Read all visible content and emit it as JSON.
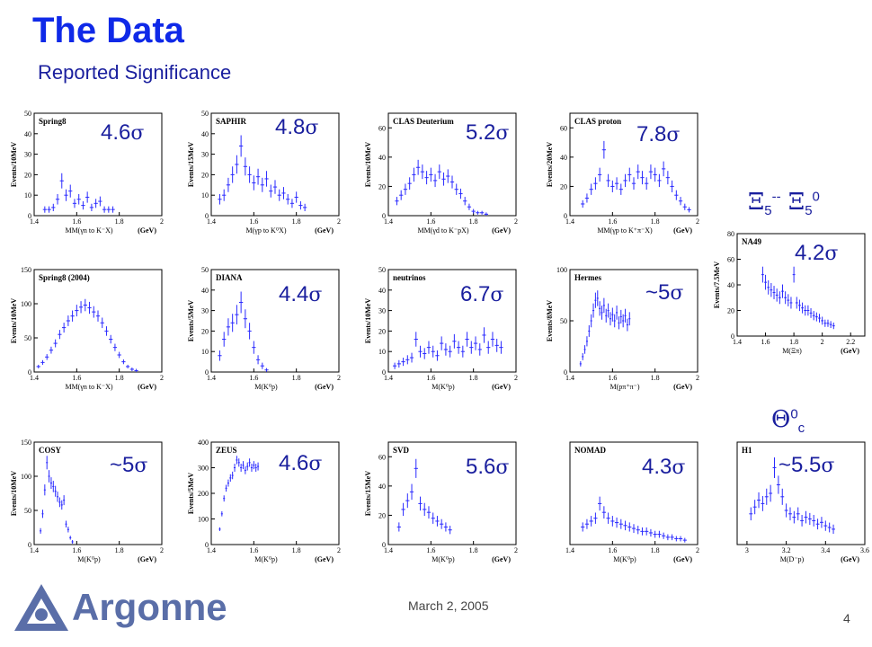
{
  "slide": {
    "title": "The Data",
    "subtitle": "Reported Significance",
    "date": "March 2, 2005",
    "page_number": "4",
    "logo_text": "Argonne",
    "xi_label": {
      "sym": "Ξ",
      "sub1": "5",
      "sup1": "--",
      "sub2": "5",
      "sup2": "0"
    },
    "theta_label": {
      "sym": "Θ",
      "sup": "0",
      "sub": "c"
    },
    "sigma_symbol": "σ",
    "colors": {
      "title": "#0f29e8",
      "text": "#1a1f9e",
      "data": "#2b2bff",
      "logo": "#5a6ea8"
    }
  },
  "chart_data": [
    {
      "type": "scatter",
      "panel": "Spring8",
      "name": "Spring8",
      "significance": "4.6",
      "sig_prefix": "",
      "ylabel": "Events/10MeV",
      "xlabel": "MM(γn to K⁻X)",
      "xunit": "(GeV)",
      "xlim": [
        1.4,
        2.0
      ],
      "ylim": [
        0,
        50
      ],
      "xticks": [
        "1.4",
        "1.6",
        "1.8",
        "2"
      ],
      "yticks": [
        "0",
        "10",
        "20",
        "30",
        "40",
        "50"
      ],
      "x": [
        1.45,
        1.47,
        1.49,
        1.51,
        1.53,
        1.55,
        1.57,
        1.59,
        1.61,
        1.63,
        1.65,
        1.67,
        1.69,
        1.71,
        1.73,
        1.75,
        1.77
      ],
      "y": [
        3,
        3,
        4,
        8,
        17,
        10,
        12,
        6,
        8,
        5,
        9,
        4,
        6,
        7,
        3,
        3,
        3
      ]
    },
    {
      "type": "scatter",
      "panel": "SAPHIR",
      "name": "SAPHIR",
      "significance": "4.8",
      "sig_prefix": "",
      "ylabel": "Events/15MeV",
      "xlabel": "M(γp to K⁰X)",
      "xunit": "(GeV)",
      "xlim": [
        1.4,
        2.0
      ],
      "ylim": [
        0,
        50
      ],
      "xticks": [
        "1.4",
        "1.6",
        "1.8",
        "2"
      ],
      "yticks": [
        "0",
        "10",
        "20",
        "30",
        "40",
        "50"
      ],
      "x": [
        1.44,
        1.46,
        1.48,
        1.5,
        1.52,
        1.54,
        1.56,
        1.58,
        1.6,
        1.62,
        1.64,
        1.66,
        1.68,
        1.7,
        1.72,
        1.74,
        1.76,
        1.78,
        1.8,
        1.82,
        1.84
      ],
      "y": [
        8,
        10,
        15,
        20,
        25,
        34,
        24,
        20,
        16,
        19,
        15,
        18,
        12,
        14,
        10,
        11,
        8,
        6,
        9,
        5,
        4
      ]
    },
    {
      "type": "scatter",
      "panel": "CLAS Deuterium",
      "name": "CLAS Deuterium",
      "significance": "5.2",
      "sig_prefix": "",
      "ylabel": "Events/10MeV",
      "xlabel": "MM(γd to K⁻pX)",
      "xunit": "(GeV)",
      "xlim": [
        1.4,
        2.0
      ],
      "ylim": [
        0,
        70
      ],
      "xticks": [
        "1.4",
        "1.6",
        "1.8",
        "2"
      ],
      "yticks": [
        "0",
        "20",
        "40",
        "60"
      ],
      "x": [
        1.44,
        1.46,
        1.48,
        1.5,
        1.52,
        1.54,
        1.56,
        1.58,
        1.6,
        1.62,
        1.64,
        1.66,
        1.68,
        1.7,
        1.72,
        1.74,
        1.76,
        1.78,
        1.8,
        1.82,
        1.84,
        1.86
      ],
      "y": [
        10,
        14,
        18,
        22,
        28,
        33,
        30,
        26,
        28,
        24,
        30,
        25,
        27,
        23,
        18,
        15,
        10,
        6,
        3,
        2,
        2,
        1
      ]
    },
    {
      "type": "scatter",
      "panel": "CLAS proton",
      "name": "CLAS proton",
      "significance": "7.8",
      "sig_prefix": "",
      "ylabel": "Events/20MeV",
      "xlabel": "MM(γp to K⁺π⁻X)",
      "xunit": "(GeV)",
      "xlim": [
        1.4,
        2.0
      ],
      "ylim": [
        0,
        70
      ],
      "xticks": [
        "1.4",
        "1.6",
        "1.8",
        "2"
      ],
      "yticks": [
        "0",
        "20",
        "40",
        "60"
      ],
      "x": [
        1.46,
        1.48,
        1.5,
        1.52,
        1.54,
        1.56,
        1.58,
        1.6,
        1.62,
        1.64,
        1.66,
        1.68,
        1.7,
        1.72,
        1.74,
        1.76,
        1.78,
        1.8,
        1.82,
        1.84,
        1.86,
        1.88,
        1.9,
        1.92,
        1.94,
        1.96
      ],
      "y": [
        8,
        12,
        18,
        22,
        28,
        45,
        24,
        20,
        22,
        18,
        24,
        28,
        22,
        30,
        26,
        22,
        30,
        28,
        24,
        32,
        26,
        20,
        14,
        10,
        6,
        4
      ]
    },
    {
      "type": "scatter",
      "panel": "Spring8 (2004)",
      "name": "Spring8 (2004)",
      "significance": "",
      "sig_prefix": "",
      "ylabel": "Events/10MeV",
      "xlabel": "MM(γn to K⁻X)",
      "xunit": "(GeV)",
      "xlim": [
        1.4,
        2.0
      ],
      "ylim": [
        0,
        150
      ],
      "xticks": [
        "1.4",
        "1.6",
        "1.8",
        "2"
      ],
      "yticks": [
        "0",
        "50",
        "100",
        "150"
      ],
      "x": [
        1.42,
        1.44,
        1.46,
        1.48,
        1.5,
        1.52,
        1.54,
        1.56,
        1.58,
        1.6,
        1.62,
        1.64,
        1.66,
        1.68,
        1.7,
        1.72,
        1.74,
        1.76,
        1.78,
        1.8,
        1.82,
        1.84,
        1.86,
        1.88
      ],
      "y": [
        8,
        14,
        22,
        32,
        42,
        55,
        65,
        75,
        82,
        90,
        95,
        98,
        94,
        88,
        82,
        72,
        60,
        48,
        36,
        25,
        15,
        8,
        4,
        2
      ]
    },
    {
      "type": "scatter",
      "panel": "DIANA",
      "name": "DIANA",
      "significance": "4.4",
      "sig_prefix": "",
      "ylabel": "Events/5MeV",
      "xlabel": "M(K⁰p)",
      "xunit": "(GeV)",
      "xlim": [
        1.4,
        2.0
      ],
      "ylim": [
        0,
        50
      ],
      "xticks": [
        "1.4",
        "1.6",
        "1.8",
        "2"
      ],
      "yticks": [
        "0",
        "10",
        "20",
        "30",
        "40",
        "50"
      ],
      "x": [
        1.44,
        1.46,
        1.48,
        1.5,
        1.52,
        1.54,
        1.56,
        1.58,
        1.6,
        1.62,
        1.64,
        1.66
      ],
      "y": [
        8,
        16,
        22,
        24,
        28,
        34,
        26,
        20,
        12,
        6,
        3,
        1
      ]
    },
    {
      "type": "scatter",
      "panel": "neutrinos",
      "name": "neutrinos",
      "significance": "6.7",
      "sig_prefix": "",
      "ylabel": "Events/10MeV",
      "xlabel": "M(K⁰p)",
      "xunit": "(GeV)",
      "xlim": [
        1.4,
        2.0
      ],
      "ylim": [
        0,
        50
      ],
      "xticks": [
        "1.4",
        "1.6",
        "1.8",
        "2"
      ],
      "yticks": [
        "0",
        "10",
        "20",
        "30",
        "40",
        "50"
      ],
      "x": [
        1.43,
        1.45,
        1.47,
        1.49,
        1.51,
        1.53,
        1.55,
        1.57,
        1.59,
        1.61,
        1.63,
        1.65,
        1.67,
        1.69,
        1.71,
        1.73,
        1.75,
        1.77,
        1.79,
        1.81,
        1.83,
        1.85,
        1.87,
        1.89,
        1.91,
        1.93
      ],
      "y": [
        3,
        4,
        5,
        6,
        7,
        16,
        10,
        9,
        12,
        10,
        8,
        14,
        11,
        10,
        15,
        12,
        10,
        16,
        12,
        14,
        11,
        18,
        12,
        16,
        13,
        12
      ]
    },
    {
      "type": "scatter",
      "panel": "Hermes",
      "name": "Hermes",
      "significance": "5",
      "sig_prefix": "~",
      "ylabel": "Events/8MeV",
      "xlabel": "M(pπ⁺π⁻)",
      "xunit": "(GeV)",
      "xlim": [
        1.4,
        2.0
      ],
      "ylim": [
        0,
        100
      ],
      "xticks": [
        "1.4",
        "1.6",
        "1.8",
        "2"
      ],
      "yticks": [
        "0",
        "50",
        "100"
      ],
      "x": [
        1.45,
        1.46,
        1.47,
        1.48,
        1.49,
        1.5,
        1.51,
        1.52,
        1.53,
        1.54,
        1.55,
        1.56,
        1.57,
        1.58,
        1.59,
        1.6,
        1.61,
        1.62,
        1.63,
        1.64,
        1.65,
        1.66,
        1.67,
        1.68
      ],
      "y": [
        8,
        15,
        22,
        30,
        40,
        50,
        60,
        70,
        72,
        62,
        58,
        65,
        55,
        60,
        52,
        56,
        50,
        58,
        48,
        54,
        50,
        55,
        46,
        52
      ]
    },
    {
      "type": "scatter",
      "panel": "NA49",
      "name": "NA49",
      "significance": "4.2",
      "sig_prefix": "",
      "ylabel": "Events/7.5MeV",
      "xlabel": "M(Ξπ)",
      "xunit": "(GeV)",
      "xlim": [
        1.4,
        2.3
      ],
      "ylim": [
        0,
        80
      ],
      "xticks": [
        "1.4",
        "1.6",
        "1.8",
        "2",
        "2.2"
      ],
      "yticks": [
        "0",
        "20",
        "40",
        "60",
        "80"
      ],
      "x": [
        1.58,
        1.6,
        1.62,
        1.64,
        1.66,
        1.68,
        1.7,
        1.72,
        1.74,
        1.76,
        1.78,
        1.8,
        1.82,
        1.84,
        1.86,
        1.88,
        1.9,
        1.92,
        1.94,
        1.96,
        1.98,
        2.0,
        2.02,
        2.04,
        2.06,
        2.08
      ],
      "y": [
        48,
        42,
        38,
        36,
        34,
        32,
        30,
        35,
        30,
        28,
        26,
        48,
        26,
        24,
        22,
        20,
        20,
        18,
        16,
        15,
        14,
        12,
        10,
        10,
        9,
        8
      ]
    },
    {
      "type": "scatter",
      "panel": "COSY",
      "name": "COSY",
      "significance": "5",
      "sig_prefix": "~",
      "ylabel": "Events/10MeV",
      "xlabel": "M(K⁰p)",
      "xunit": "(GeV)",
      "xlim": [
        1.4,
        2.0
      ],
      "ylim": [
        0,
        150
      ],
      "xticks": [
        "1.4",
        "1.6",
        "1.8",
        "2"
      ],
      "yticks": [
        "0",
        "50",
        "100",
        "150"
      ],
      "x": [
        1.43,
        1.44,
        1.45,
        1.46,
        1.47,
        1.48,
        1.49,
        1.5,
        1.51,
        1.52,
        1.53,
        1.54,
        1.55,
        1.56,
        1.57,
        1.58
      ],
      "y": [
        20,
        45,
        80,
        120,
        100,
        90,
        85,
        78,
        70,
        62,
        58,
        65,
        30,
        22,
        10,
        4
      ]
    },
    {
      "type": "scatter",
      "panel": "ZEUS",
      "name": "ZEUS",
      "significance": "4.6",
      "sig_prefix": "",
      "ylabel": "Events/5MeV",
      "xlabel": "M(K⁰p)",
      "xunit": "(GeV)",
      "xlim": [
        1.4,
        2.0
      ],
      "ylim": [
        0,
        400
      ],
      "xticks": [
        "1.4",
        "1.6",
        "1.8",
        "2"
      ],
      "yticks": [
        "0",
        "100",
        "200",
        "300",
        "400"
      ],
      "x": [
        1.44,
        1.45,
        1.46,
        1.47,
        1.48,
        1.49,
        1.5,
        1.51,
        1.52,
        1.53,
        1.54,
        1.55,
        1.56,
        1.57,
        1.58,
        1.59,
        1.6,
        1.61,
        1.62
      ],
      "y": [
        60,
        120,
        180,
        220,
        240,
        260,
        270,
        300,
        330,
        320,
        300,
        310,
        290,
        305,
        320,
        300,
        310,
        300,
        305
      ]
    },
    {
      "type": "scatter",
      "panel": "SVD",
      "name": "SVD",
      "significance": "5.6",
      "sig_prefix": "",
      "ylabel": "Events/15MeV",
      "xlabel": "M(K⁰p)",
      "xunit": "(GeV)",
      "xlim": [
        1.4,
        2.0
      ],
      "ylim": [
        0,
        70
      ],
      "xticks": [
        "1.4",
        "1.6",
        "1.8",
        "2"
      ],
      "yticks": [
        "0",
        "20",
        "40",
        "60"
      ],
      "x": [
        1.45,
        1.47,
        1.49,
        1.51,
        1.53,
        1.55,
        1.57,
        1.59,
        1.61,
        1.63,
        1.65,
        1.67,
        1.69
      ],
      "y": [
        12,
        24,
        30,
        36,
        52,
        28,
        24,
        22,
        18,
        16,
        14,
        12,
        10
      ]
    },
    {
      "type": "scatter",
      "panel": "NOMAD",
      "name": "NOMAD",
      "significance": "4.3",
      "sig_prefix": "",
      "ylabel": "",
      "xlabel": "M(K⁰p)",
      "xunit": "(GeV)",
      "xlim": [
        1.4,
        2.0
      ],
      "ylim": [
        0,
        70
      ],
      "xticks": [
        "1.4",
        "1.6",
        "1.8",
        "2"
      ],
      "yticks": [],
      "x": [
        1.46,
        1.48,
        1.5,
        1.52,
        1.54,
        1.56,
        1.58,
        1.6,
        1.62,
        1.64,
        1.66,
        1.68,
        1.7,
        1.72,
        1.74,
        1.76,
        1.78,
        1.8,
        1.82,
        1.84,
        1.86,
        1.88,
        1.9,
        1.92,
        1.94
      ],
      "y": [
        12,
        14,
        16,
        18,
        28,
        22,
        18,
        16,
        15,
        14,
        13,
        12,
        11,
        10,
        9,
        9,
        8,
        7,
        7,
        6,
        5,
        5,
        4,
        4,
        3
      ]
    },
    {
      "type": "scatter",
      "panel": "H1",
      "name": "H1",
      "significance": "5.5",
      "sig_prefix": "~",
      "ylabel": "",
      "xlabel": "M(D⁻p)",
      "xunit": "(GeV)",
      "xlim": [
        2.95,
        3.6
      ],
      "ylim": [
        0,
        60
      ],
      "xticks": [
        "3",
        "3.2",
        "3.4",
        "3.6"
      ],
      "yticks": [],
      "x": [
        3.02,
        3.04,
        3.06,
        3.08,
        3.1,
        3.12,
        3.14,
        3.16,
        3.18,
        3.2,
        3.22,
        3.24,
        3.26,
        3.28,
        3.3,
        3.32,
        3.34,
        3.36,
        3.38,
        3.4,
        3.42,
        3.44
      ],
      "y": [
        18,
        22,
        26,
        24,
        28,
        30,
        45,
        35,
        28,
        20,
        18,
        16,
        18,
        14,
        16,
        15,
        14,
        12,
        13,
        11,
        10,
        9
      ]
    }
  ]
}
